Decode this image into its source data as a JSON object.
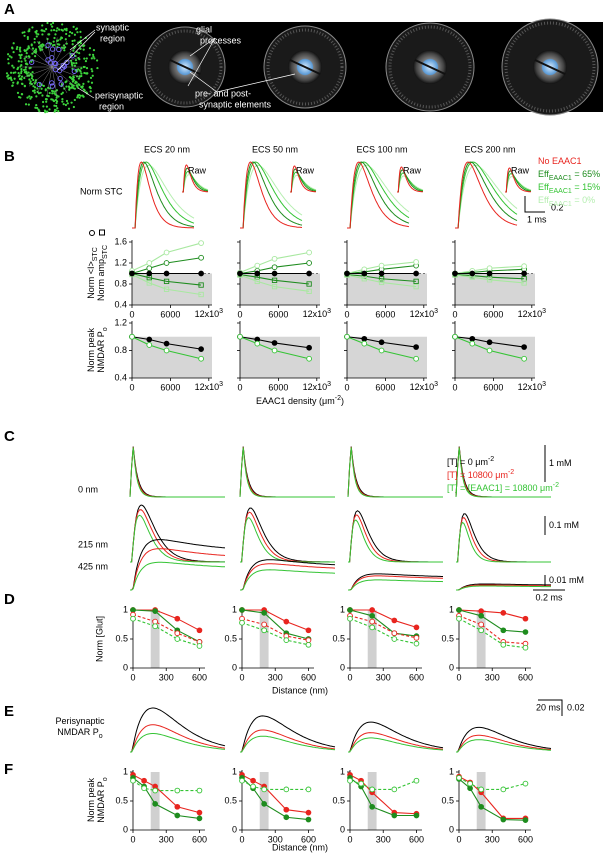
{
  "panel_labels": [
    "A",
    "B",
    "C",
    "D",
    "E",
    "F"
  ],
  "panel_a": {
    "synaptic": [
      "synaptic",
      "region"
    ],
    "perisynaptic": [
      "perisynaptic",
      "region"
    ],
    "glial": [
      "glial",
      "processes"
    ],
    "elements": [
      "pre- and post-",
      "synaptic elements"
    ]
  },
  "panel_b": {
    "columns": [
      "ECS 20 nm",
      "ECS 50 nm",
      "ECS 100 nm",
      "ECS 200 nm"
    ],
    "row_label": "Norm STC",
    "raw": "Raw",
    "scale_y": "0.2",
    "scale_x": "1 ms",
    "legend": [
      {
        "text": "No EAAC1",
        "color": "#e8251f"
      },
      {
        "text": "Eff",
        "sub": "EAAC1",
        "rest": " = 65%",
        "color": "#1e8c1e"
      },
      {
        "text": "Eff",
        "sub": "EAAC1",
        "rest": " = 15%",
        "color": "#35c435"
      },
      {
        "text": "Eff",
        "sub": "EAAC1",
        "rest": " = 0%",
        "color": "#b5eeb0"
      }
    ],
    "ratio_ylabel": [
      {
        "text": "Norm <I>",
        "sub": "STC"
      },
      {
        "text": "Norm amp",
        "sub": "STC"
      }
    ],
    "po_ylabel": [
      {
        "text": "Norm peak"
      },
      {
        "text": "NMDAR P",
        "sub": "o"
      }
    ],
    "xlabel": {
      "text": "EAAC1 density (μm",
      "sup": "-2",
      "rest": ")"
    },
    "ratio_axis": {
      "xlim": [
        0,
        12500
      ],
      "ylim": [
        0.4,
        1.6
      ],
      "yticks": [
        0.4,
        0.8,
        1.2,
        1.6
      ],
      "xticks": [
        0,
        6000,
        {
          "value": 12000,
          "label": "12x10",
          "sup": "3"
        }
      ],
      "shade_below": 1.0
    },
    "po_axis": {
      "xlim": [
        0,
        12500
      ],
      "ylim": [
        0.4,
        1.2
      ],
      "yticks": [
        0.4,
        0.8,
        1.2
      ],
      "xticks": [
        0,
        6000,
        {
          "value": 12000,
          "label": "12x10",
          "sup": "3"
        }
      ],
      "shade_below": 1.0
    },
    "x": [
      0,
      2700,
      5400,
      10800
    ],
    "ratio": [
      [
        {
          "color": "#1e8c1e",
          "marker": "circle-open",
          "values": [
            1.0,
            1.1,
            1.2,
            1.3
          ]
        },
        {
          "color": "#a8e8a0",
          "marker": "circle-open",
          "values": [
            1.05,
            1.2,
            1.4,
            1.58
          ]
        },
        {
          "color": "#1e8c1e",
          "marker": "square-open",
          "values": [
            1.0,
            0.92,
            0.85,
            0.78
          ]
        },
        {
          "color": "#a8e8a0",
          "marker": "square-open",
          "values": [
            0.98,
            0.82,
            0.7,
            0.6
          ]
        },
        {
          "color": "#000000",
          "marker": "circle",
          "values": [
            1.0,
            1.0,
            1.0,
            1.0
          ]
        }
      ],
      [
        {
          "color": "#1e8c1e",
          "marker": "circle-open",
          "values": [
            1.0,
            1.05,
            1.12,
            1.2
          ]
        },
        {
          "color": "#a8e8a0",
          "marker": "circle-open",
          "values": [
            1.02,
            1.15,
            1.28,
            1.4
          ]
        },
        {
          "color": "#1e8c1e",
          "marker": "square-open",
          "values": [
            0.98,
            0.93,
            0.87,
            0.8
          ]
        },
        {
          "color": "#a8e8a0",
          "marker": "square-open",
          "values": [
            0.97,
            0.85,
            0.75,
            0.66
          ]
        },
        {
          "color": "#000000",
          "marker": "circle",
          "values": [
            1.0,
            1.0,
            1.0,
            1.0
          ]
        }
      ],
      [
        {
          "color": "#1e8c1e",
          "marker": "circle-open",
          "values": [
            1.0,
            1.03,
            1.08,
            1.15
          ]
        },
        {
          "color": "#a8e8a0",
          "marker": "circle-open",
          "values": [
            1.0,
            1.08,
            1.15,
            1.22
          ]
        },
        {
          "color": "#1e8c1e",
          "marker": "square-open",
          "values": [
            0.98,
            0.95,
            0.9,
            0.85
          ]
        },
        {
          "color": "#a8e8a0",
          "marker": "square-open",
          "values": [
            0.97,
            0.9,
            0.83,
            0.75
          ]
        },
        {
          "color": "#000000",
          "marker": "circle",
          "values": [
            1.0,
            1.0,
            1.0,
            1.0
          ]
        }
      ],
      [
        {
          "color": "#1e8c1e",
          "marker": "circle-open",
          "values": [
            1.0,
            1.02,
            1.05,
            1.08
          ]
        },
        {
          "color": "#a8e8a0",
          "marker": "circle-open",
          "values": [
            1.0,
            1.05,
            1.1,
            1.14
          ]
        },
        {
          "color": "#1e8c1e",
          "marker": "square-open",
          "values": [
            0.98,
            0.96,
            0.93,
            0.9
          ]
        },
        {
          "color": "#a8e8a0",
          "marker": "square-open",
          "values": [
            0.97,
            0.93,
            0.88,
            0.82
          ]
        },
        {
          "color": "#000000",
          "marker": "circle",
          "values": [
            1.0,
            1.0,
            1.0,
            1.0
          ]
        }
      ]
    ],
    "po": [
      [
        {
          "color": "#000000",
          "marker": "circle",
          "values": [
            1.0,
            0.96,
            0.9,
            0.82
          ]
        },
        {
          "color": "#35c435",
          "marker": "circle-open",
          "values": [
            1.0,
            0.88,
            0.8,
            0.68
          ]
        }
      ],
      [
        {
          "color": "#000000",
          "marker": "circle",
          "values": [
            1.0,
            0.96,
            0.91,
            0.84
          ]
        },
        {
          "color": "#35c435",
          "marker": "circle-open",
          "values": [
            1.0,
            0.9,
            0.8,
            0.68
          ]
        }
      ],
      [
        {
          "color": "#000000",
          "marker": "circle",
          "values": [
            1.0,
            0.97,
            0.92,
            0.85
          ]
        },
        {
          "color": "#35c435",
          "marker": "circle-open",
          "values": [
            1.0,
            0.9,
            0.8,
            0.68
          ]
        }
      ],
      [
        {
          "color": "#000000",
          "marker": "circle",
          "values": [
            1.0,
            0.97,
            0.92,
            0.85
          ]
        },
        {
          "color": "#35c435",
          "marker": "circle-open",
          "values": [
            1.0,
            0.9,
            0.8,
            0.68
          ]
        }
      ]
    ]
  },
  "panel_c": {
    "rows": [
      "0 nm",
      "215 nm",
      "425 nm"
    ],
    "legend": [
      {
        "text": "[T] = 0 μm",
        "sup": "-2",
        "color": "#000000"
      },
      {
        "text": "[T] = 10800 μm",
        "sup": "-2",
        "color": "#e8251f"
      },
      {
        "text": "[T] = [EAAC1] = 10800 μm",
        "sup": "-2",
        "color": "#35c435"
      }
    ],
    "scales": [
      "1 mM",
      "0.1 mM",
      "0.01 mM"
    ],
    "time_scale": "0.2 ms"
  },
  "panel_d": {
    "ylabel": "Norm [Glut]",
    "xlabel": "Distance (nm)",
    "axis": {
      "xlim": [
        0,
        650
      ],
      "ylim": [
        0,
        1
      ],
      "yticks": [
        0,
        0.5,
        1
      ],
      "xticks": [
        0,
        300,
        600
      ],
      "shaded_x": [
        160,
        240
      ]
    },
    "x": [
      0,
      200,
      400,
      600
    ],
    "plots": [
      [
        {
          "color": "#e8251f",
          "marker": "circle",
          "values": [
            1,
            1,
            0.85,
            0.65
          ]
        },
        {
          "color": "#1e8c1e",
          "marker": "circle",
          "values": [
            1,
            0.98,
            0.65,
            0.45
          ]
        },
        {
          "color": "#e8251f",
          "marker": "circle-open",
          "dash": true,
          "values": [
            0.92,
            0.8,
            0.6,
            0.45
          ]
        },
        {
          "color": "#35c435",
          "marker": "circle-open",
          "dash": true,
          "values": [
            0.85,
            0.72,
            0.5,
            0.38
          ]
        }
      ],
      [
        {
          "color": "#e8251f",
          "marker": "circle",
          "values": [
            1,
            1,
            0.8,
            0.65
          ]
        },
        {
          "color": "#1e8c1e",
          "marker": "circle",
          "values": [
            1,
            0.95,
            0.6,
            0.5
          ]
        },
        {
          "color": "#e8251f",
          "marker": "circle-open",
          "dash": true,
          "values": [
            0.85,
            0.75,
            0.55,
            0.48
          ]
        },
        {
          "color": "#35c435",
          "marker": "circle-open",
          "dash": true,
          "values": [
            0.78,
            0.65,
            0.48,
            0.4
          ]
        }
      ],
      [
        {
          "color": "#e8251f",
          "marker": "circle",
          "values": [
            1,
            1,
            0.82,
            0.7
          ]
        },
        {
          "color": "#1e8c1e",
          "marker": "circle",
          "values": [
            1,
            0.9,
            0.6,
            0.55
          ]
        },
        {
          "color": "#e8251f",
          "marker": "circle-open",
          "dash": true,
          "values": [
            0.9,
            0.8,
            0.6,
            0.52
          ]
        },
        {
          "color": "#35c435",
          "marker": "circle-open",
          "dash": true,
          "values": [
            0.85,
            0.7,
            0.5,
            0.42
          ]
        }
      ],
      [
        {
          "color": "#e8251f",
          "marker": "circle",
          "values": [
            1,
            0.98,
            0.95,
            0.85
          ]
        },
        {
          "color": "#1e8c1e",
          "marker": "circle",
          "values": [
            1,
            0.9,
            0.65,
            0.62
          ]
        },
        {
          "color": "#e8251f",
          "marker": "circle-open",
          "dash": true,
          "values": [
            0.9,
            0.75,
            0.45,
            0.42
          ]
        },
        {
          "color": "#35c435",
          "marker": "circle-open",
          "dash": true,
          "values": [
            0.85,
            0.65,
            0.4,
            0.35
          ]
        }
      ]
    ]
  },
  "panel_e": {
    "label": [
      {
        "text": "Perisynaptic"
      },
      {
        "text": "NMDAR P",
        "sub": "o"
      }
    ],
    "time_scale": "20 ms",
    "amp_scale": "0.02"
  },
  "panel_f": {
    "ylabel": [
      {
        "text": "Norm peak"
      },
      {
        "text": "NMDAR P",
        "sub": "o"
      }
    ],
    "xlabel": "Distance (nm)",
    "axis": {
      "xlim": [
        0,
        650
      ],
      "ylim": [
        0,
        1
      ],
      "yticks": [
        0,
        0.5,
        1
      ],
      "xticks": [
        0,
        300,
        600
      ],
      "shaded_x": [
        160,
        240
      ]
    },
    "x": [
      0,
      100,
      200,
      400,
      600
    ],
    "plots": [
      [
        {
          "color": "#e8251f",
          "marker": "circle",
          "values": [
            0.95,
            0.85,
            0.75,
            0.4,
            0.3
          ]
        },
        {
          "color": "#1e8c1e",
          "marker": "circle",
          "values": [
            0.9,
            0.75,
            0.45,
            0.25,
            0.2
          ]
        },
        {
          "color": "#35c435",
          "marker": "circle-open",
          "dash": true,
          "values": [
            0.85,
            0.72,
            0.68,
            0.68,
            0.68
          ]
        }
      ],
      [
        {
          "color": "#e8251f",
          "marker": "circle",
          "values": [
            0.95,
            0.85,
            0.75,
            0.35,
            0.3
          ]
        },
        {
          "color": "#1e8c1e",
          "marker": "circle",
          "values": [
            0.9,
            0.72,
            0.45,
            0.22,
            0.18
          ]
        },
        {
          "color": "#35c435",
          "marker": "circle-open",
          "dash": true,
          "values": [
            0.85,
            0.75,
            0.7,
            0.7,
            0.7
          ]
        }
      ],
      [
        {
          "color": "#e8251f",
          "marker": "circle",
          "values": [
            0.95,
            0.85,
            0.65,
            0.3,
            0.28
          ]
        },
        {
          "color": "#1e8c1e",
          "marker": "circle",
          "values": [
            0.9,
            0.75,
            0.4,
            0.25,
            0.25
          ]
        },
        {
          "color": "#35c435",
          "marker": "circle-open",
          "dash": true,
          "values": [
            0.85,
            0.8,
            0.7,
            0.7,
            0.85
          ]
        }
      ],
      [
        {
          "color": "#e8251f",
          "marker": "circle",
          "values": [
            0.92,
            0.82,
            0.65,
            0.2,
            0.2
          ]
        },
        {
          "color": "#1e8c1e",
          "marker": "circle",
          "values": [
            0.88,
            0.72,
            0.4,
            0.18,
            0.17
          ]
        },
        {
          "color": "#35c435",
          "marker": "circle-open",
          "dash": true,
          "values": [
            0.9,
            0.8,
            0.7,
            0.7,
            0.8
          ]
        }
      ]
    ]
  }
}
